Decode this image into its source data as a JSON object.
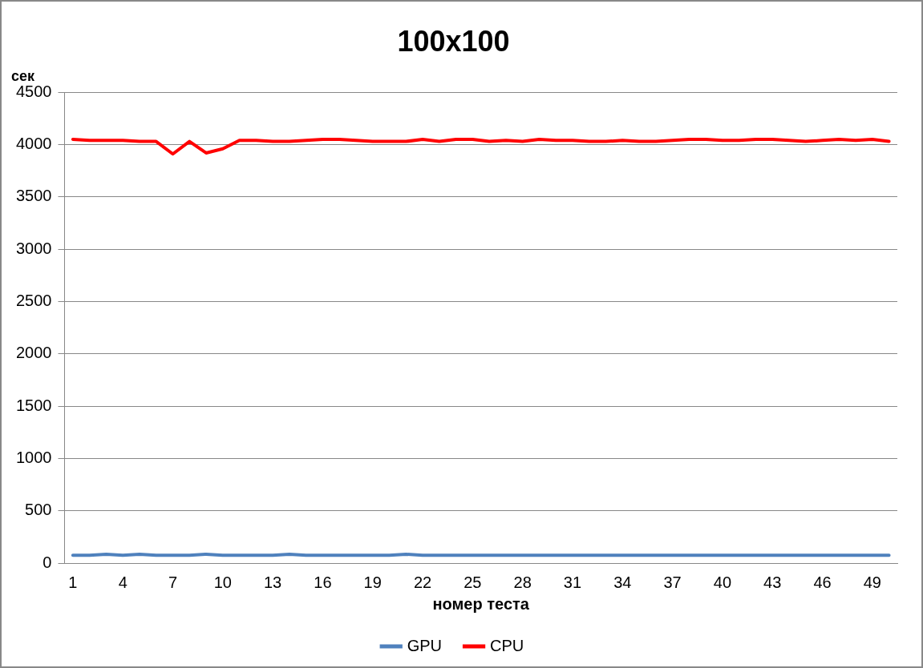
{
  "chart_data": {
    "type": "line",
    "title": "100x100",
    "ylabel": "сек",
    "xlabel": "номер теста",
    "categories": [
      "1",
      null,
      null,
      "4",
      null,
      null,
      "7",
      null,
      null,
      "10",
      null,
      null,
      "13",
      null,
      null,
      "16",
      null,
      null,
      "19",
      null,
      null,
      "22",
      null,
      null,
      "25",
      null,
      null,
      "28",
      null,
      null,
      "31",
      null,
      null,
      "34",
      null,
      null,
      "37",
      null,
      null,
      "40",
      null,
      null,
      "43",
      null,
      null,
      "46",
      null,
      null,
      "49",
      null
    ],
    "series": [
      {
        "name": "GPU",
        "color": "#4f81bd",
        "values": [
          75,
          75,
          85,
          75,
          85,
          75,
          75,
          75,
          85,
          75,
          75,
          75,
          75,
          85,
          75,
          75,
          75,
          75,
          75,
          75,
          85,
          75,
          75,
          75,
          75,
          75,
          75,
          75,
          75,
          75,
          75,
          75,
          75,
          75,
          75,
          75,
          75,
          75,
          75,
          75,
          75,
          75,
          75,
          75,
          75,
          75,
          75,
          75,
          75,
          75
        ]
      },
      {
        "name": "CPU",
        "color": "#ff0000",
        "values": [
          4050,
          4040,
          4040,
          4040,
          4030,
          4030,
          3910,
          4030,
          3920,
          3960,
          4040,
          4040,
          4030,
          4030,
          4040,
          4050,
          4050,
          4040,
          4030,
          4030,
          4030,
          4050,
          4030,
          4050,
          4050,
          4030,
          4040,
          4030,
          4050,
          4040,
          4040,
          4030,
          4030,
          4040,
          4030,
          4030,
          4040,
          4050,
          4050,
          4040,
          4040,
          4050,
          4050,
          4040,
          4030,
          4040,
          4050,
          4040,
          4050,
          4030
        ]
      }
    ],
    "ylim": [
      0,
      4500
    ],
    "yticks": [
      0,
      500,
      1000,
      1500,
      2000,
      2500,
      3000,
      3500,
      4000,
      4500
    ],
    "grid": "y",
    "legend": "bottom",
    "marker": "none",
    "line_style": "solid"
  }
}
